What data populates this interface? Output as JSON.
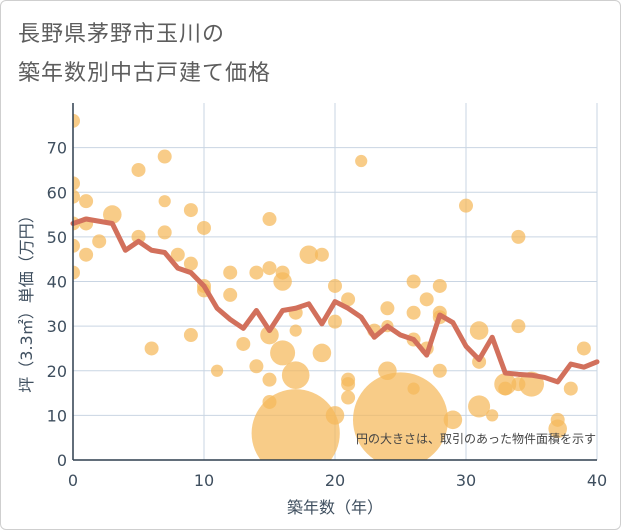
{
  "chart_data": {
    "type": "scatter",
    "title_lines": [
      "長野県茅野市玉川の",
      "築年数別中古戸建て価格"
    ],
    "xlabel": "築年数（年）",
    "ylabel": "坪（3.3㎡）単価（万円）",
    "xlim": [
      0,
      40
    ],
    "ylim": [
      0,
      80
    ],
    "xticks": [
      0,
      10,
      20,
      30,
      40
    ],
    "yticks": [
      0,
      10,
      20,
      30,
      40,
      50,
      60,
      70
    ],
    "grid": true,
    "note": "円の大きさは、取引のあった物件面積を示す",
    "colors": {
      "bubble": "#f5b95a",
      "line": "#d2705c",
      "grid": "#c9d5e3",
      "axis": "#2f3e4e"
    },
    "bubbles": [
      {
        "x": 0,
        "y": 76,
        "size": 1
      },
      {
        "x": 0,
        "y": 62,
        "size": 1
      },
      {
        "x": 0,
        "y": 59,
        "size": 1
      },
      {
        "x": 0,
        "y": 53,
        "size": 1
      },
      {
        "x": 0,
        "y": 48,
        "size": 1
      },
      {
        "x": 0,
        "y": 42,
        "size": 1
      },
      {
        "x": 1,
        "y": 58,
        "size": 1
      },
      {
        "x": 1,
        "y": 53,
        "size": 1
      },
      {
        "x": 1,
        "y": 46,
        "size": 1
      },
      {
        "x": 2,
        "y": 49,
        "size": 1
      },
      {
        "x": 3,
        "y": 55,
        "size": 2
      },
      {
        "x": 5,
        "y": 65,
        "size": 1
      },
      {
        "x": 5,
        "y": 50,
        "size": 1
      },
      {
        "x": 6,
        "y": 25,
        "size": 1
      },
      {
        "x": 7,
        "y": 68,
        "size": 1
      },
      {
        "x": 7,
        "y": 58,
        "size": 0.7
      },
      {
        "x": 7,
        "y": 51,
        "size": 1
      },
      {
        "x": 8,
        "y": 46,
        "size": 1
      },
      {
        "x": 9,
        "y": 56,
        "size": 1
      },
      {
        "x": 9,
        "y": 44,
        "size": 1
      },
      {
        "x": 9,
        "y": 28,
        "size": 1
      },
      {
        "x": 10,
        "y": 52,
        "size": 1
      },
      {
        "x": 10,
        "y": 39,
        "size": 1
      },
      {
        "x": 10,
        "y": 38,
        "size": 1
      },
      {
        "x": 11,
        "y": 20,
        "size": 0.7
      },
      {
        "x": 12,
        "y": 42,
        "size": 1
      },
      {
        "x": 12,
        "y": 37,
        "size": 1
      },
      {
        "x": 13,
        "y": 26,
        "size": 1
      },
      {
        "x": 14,
        "y": 42,
        "size": 1
      },
      {
        "x": 14,
        "y": 21,
        "size": 1
      },
      {
        "x": 15,
        "y": 54,
        "size": 1
      },
      {
        "x": 15,
        "y": 43,
        "size": 1
      },
      {
        "x": 15,
        "y": 28,
        "size": 2
      },
      {
        "x": 15,
        "y": 18,
        "size": 1
      },
      {
        "x": 15,
        "y": 13,
        "size": 1
      },
      {
        "x": 16,
        "y": 42,
        "size": 1
      },
      {
        "x": 16,
        "y": 40,
        "size": 2
      },
      {
        "x": 16,
        "y": 24,
        "size": 4
      },
      {
        "x": 17,
        "y": 33,
        "size": 1
      },
      {
        "x": 17,
        "y": 29,
        "size": 0.7
      },
      {
        "x": 17,
        "y": 19,
        "size": 5
      },
      {
        "x": 17,
        "y": 6,
        "size": 60
      },
      {
        "x": 18,
        "y": 46,
        "size": 2
      },
      {
        "x": 19,
        "y": 46,
        "size": 1
      },
      {
        "x": 19,
        "y": 24,
        "size": 2
      },
      {
        "x": 20,
        "y": 39,
        "size": 1
      },
      {
        "x": 20,
        "y": 31,
        "size": 1
      },
      {
        "x": 20,
        "y": 10,
        "size": 2
      },
      {
        "x": 21,
        "y": 36,
        "size": 1
      },
      {
        "x": 21,
        "y": 18,
        "size": 1
      },
      {
        "x": 21,
        "y": 17,
        "size": 1
      },
      {
        "x": 21,
        "y": 14,
        "size": 1
      },
      {
        "x": 22,
        "y": 67,
        "size": 0.7
      },
      {
        "x": 23,
        "y": 29,
        "size": 1
      },
      {
        "x": 24,
        "y": 34,
        "size": 1
      },
      {
        "x": 24,
        "y": 30,
        "size": 0.7
      },
      {
        "x": 24,
        "y": 20,
        "size": 2
      },
      {
        "x": 25,
        "y": 9,
        "size": 70
      },
      {
        "x": 26,
        "y": 40,
        "size": 1
      },
      {
        "x": 26,
        "y": 33,
        "size": 1
      },
      {
        "x": 26,
        "y": 27,
        "size": 1
      },
      {
        "x": 26,
        "y": 16,
        "size": 0.7
      },
      {
        "x": 27,
        "y": 36,
        "size": 1
      },
      {
        "x": 27,
        "y": 25,
        "size": 1
      },
      {
        "x": 28,
        "y": 39,
        "size": 1
      },
      {
        "x": 28,
        "y": 33,
        "size": 1
      },
      {
        "x": 28,
        "y": 32,
        "size": 1
      },
      {
        "x": 28,
        "y": 20,
        "size": 1
      },
      {
        "x": 29,
        "y": 9,
        "size": 2
      },
      {
        "x": 30,
        "y": 57,
        "size": 1
      },
      {
        "x": 31,
        "y": 29,
        "size": 2
      },
      {
        "x": 31,
        "y": 22,
        "size": 1
      },
      {
        "x": 31,
        "y": 12,
        "size": 3
      },
      {
        "x": 32,
        "y": 10,
        "size": 0.7
      },
      {
        "x": 33,
        "y": 17,
        "size": 3
      },
      {
        "x": 33,
        "y": 16,
        "size": 1
      },
      {
        "x": 34,
        "y": 50,
        "size": 1
      },
      {
        "x": 34,
        "y": 30,
        "size": 1
      },
      {
        "x": 34,
        "y": 17,
        "size": 1
      },
      {
        "x": 35,
        "y": 17,
        "size": 4
      },
      {
        "x": 37,
        "y": 9,
        "size": 1
      },
      {
        "x": 37,
        "y": 7,
        "size": 2
      },
      {
        "x": 38,
        "y": 16,
        "size": 1
      },
      {
        "x": 39,
        "y": 25,
        "size": 1
      }
    ],
    "trend": {
      "x": [
        0,
        1,
        2,
        3,
        4,
        5,
        6,
        7,
        8,
        9,
        10,
        11,
        12,
        13,
        14,
        15,
        16,
        17,
        18,
        19,
        20,
        21,
        22,
        23,
        24,
        25,
        26,
        27,
        28,
        29,
        30,
        31,
        32,
        33,
        34,
        35,
        36,
        37,
        38,
        39,
        40
      ],
      "y": [
        53,
        54,
        53.5,
        53,
        47,
        49,
        47,
        46.5,
        43,
        42,
        39,
        34,
        31.5,
        29.5,
        33.5,
        29,
        33.5,
        34,
        35,
        30.5,
        35.5,
        34,
        32,
        27.5,
        30,
        28,
        27,
        23.5,
        32.5,
        30.8,
        25.5,
        22.5,
        27.5,
        19.5,
        19.2,
        19,
        18.5,
        17.5,
        21.5,
        20.8,
        22
      ]
    }
  }
}
